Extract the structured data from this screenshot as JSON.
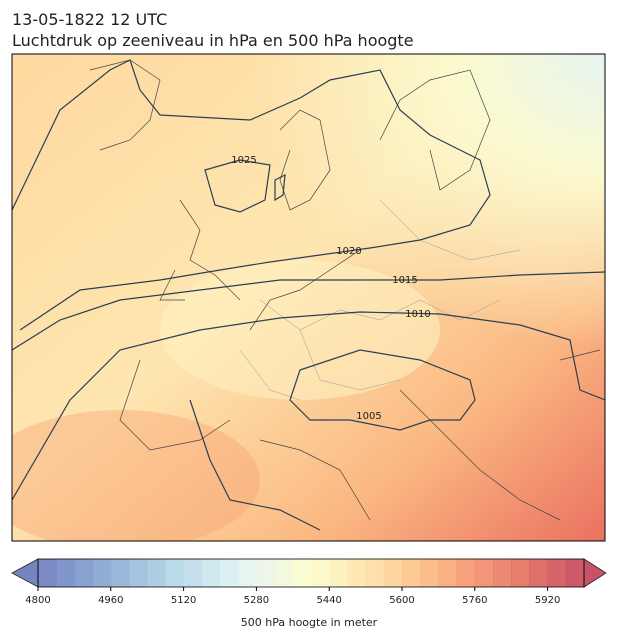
{
  "header": {
    "title": "13-05-1822 12 UTC",
    "subtitle": "Luchtdruk op zeeniveau in hPa en 500 hPa hoogte"
  },
  "map": {
    "contour_labels": [
      "1025",
      "1020",
      "1015",
      "1010",
      "1005"
    ]
  },
  "colorbar": {
    "label": "500 hPa hoogte in meter",
    "lim": [
      4800,
      6000
    ],
    "ticks": [
      4800,
      4960,
      5120,
      5280,
      5440,
      5600,
      5760,
      5920
    ]
  }
}
